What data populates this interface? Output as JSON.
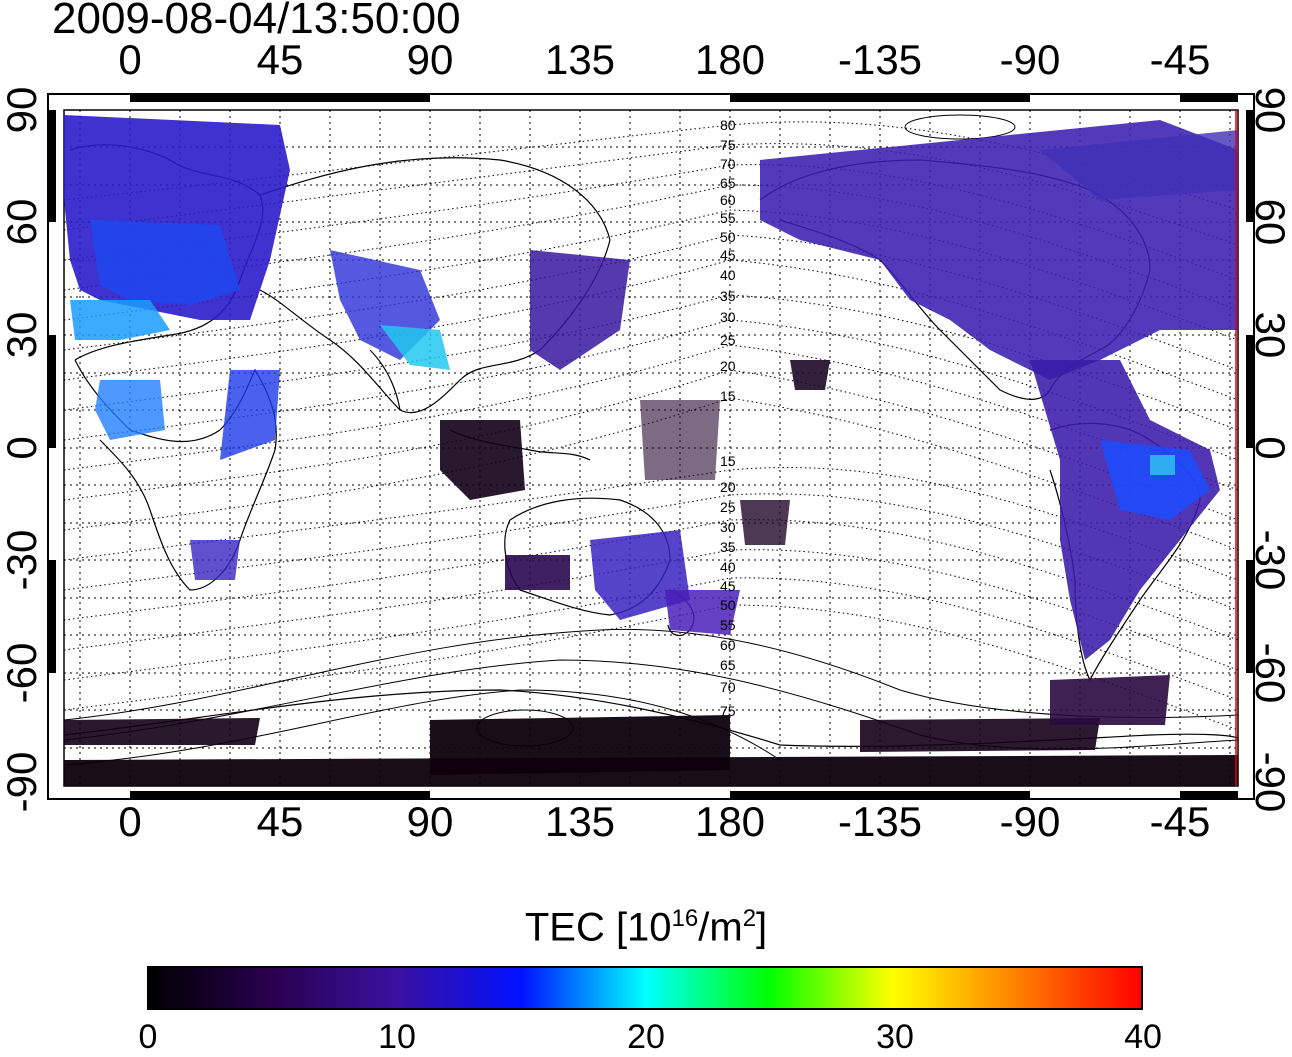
{
  "title": "2009-08-04/13:50:00",
  "map": {
    "longitude_labels": [
      "0",
      "45",
      "90",
      "135",
      "180",
      "-135",
      "-90",
      "-45"
    ],
    "latitude_labels": [
      "90",
      "60",
      "30",
      "0",
      "-30",
      "-60",
      "-90"
    ],
    "contour_labels_north": [
      "80",
      "75",
      "70",
      "65",
      "60",
      "55",
      "50",
      "45",
      "40",
      "35",
      "30",
      "25",
      "20",
      "15"
    ],
    "contour_labels_south": [
      "15",
      "20",
      "25",
      "30",
      "35",
      "40",
      "45",
      "50",
      "55",
      "60",
      "65",
      "70",
      "75"
    ],
    "grid": true
  },
  "colorbar": {
    "label_prefix": "TEC  [10",
    "label_sup1": "16",
    "label_mid": "/m",
    "label_sup2": "2",
    "label_suffix": "]",
    "ticks": [
      "0",
      "10",
      "20",
      "30",
      "40"
    ],
    "range": [
      0,
      40
    ],
    "colors": [
      "#000000",
      "#2a0050",
      "#3a10a0",
      "#0010ff",
      "#00ffff",
      "#00ff00",
      "#ffff00",
      "#ff8000",
      "#ff0000"
    ]
  }
}
